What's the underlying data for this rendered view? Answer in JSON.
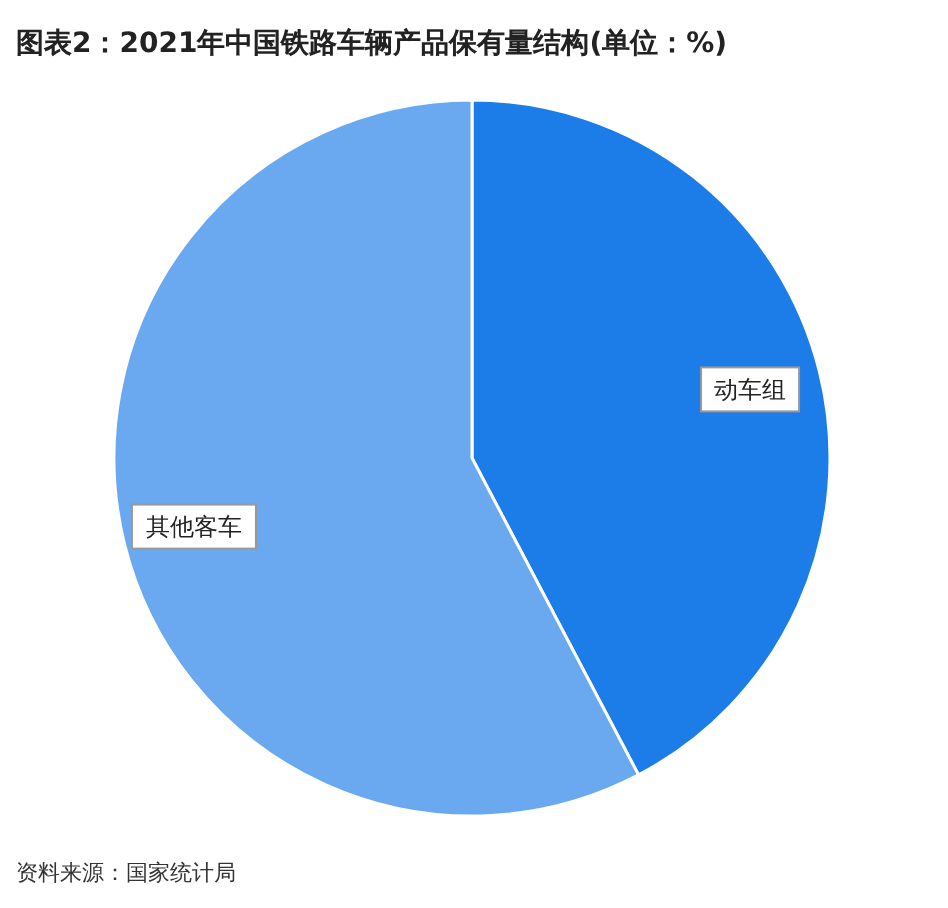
{
  "chart_data": {
    "type": "pie",
    "title": "图表2：2021年中国铁路车辆产品保有量结构(单位：%)",
    "categories": [
      "动车组",
      "其他客车"
    ],
    "values": [
      42.3,
      57.7
    ],
    "colors": [
      "#1c7ce8",
      "#6aa9ef"
    ],
    "legend": false,
    "annotations": [
      "资料来源：国家统计局"
    ]
  }
}
